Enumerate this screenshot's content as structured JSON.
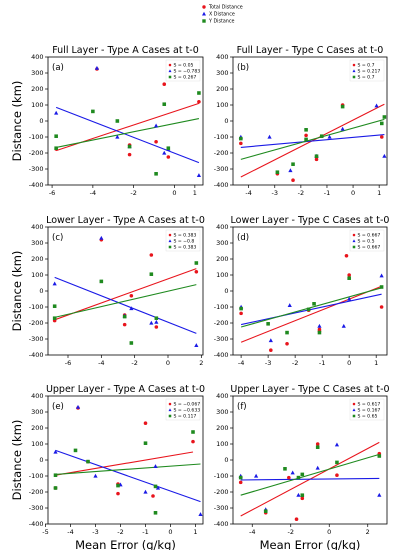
{
  "figure_legend": {
    "entries": [
      {
        "label": "Total Distance",
        "color": "#e8141c",
        "marker": "circle"
      },
      {
        "label": "X Distance",
        "color": "#1a1ae6",
        "marker": "triangle"
      },
      {
        "label": "Y Distance",
        "color": "#1f8a1f",
        "marker": "square"
      }
    ]
  },
  "colors": {
    "total": "#e8141c",
    "x": "#1a1ae6",
    "y": "#1f8a1f"
  },
  "chart_data": [
    {
      "type": "scatter",
      "panel_label": "(a)",
      "title": "Full Layer - Type A Cases at t-0",
      "ylabel": "Distance (km)",
      "xlabel": "",
      "xlim": [
        -6.2,
        1.4
      ],
      "ylim": [
        -400,
        400
      ],
      "xticks": [
        -6,
        -4,
        -2,
        0,
        1
      ],
      "yticks": [
        -400,
        -300,
        -200,
        -100,
        0,
        100,
        200,
        300,
        400
      ],
      "legend": [
        "S = 0.05",
        "S = −0.783",
        "S = 0.267"
      ],
      "series": [
        {
          "key": "total",
          "marker": "circle",
          "points": [
            [
              -5.8,
              -175
            ],
            [
              -3.8,
              325
            ],
            [
              -2.2,
              -210
            ],
            [
              -2.2,
              -150
            ],
            [
              -0.9,
              -130
            ],
            [
              -0.5,
              230
            ],
            [
              -0.3,
              -225
            ],
            [
              1.2,
              120
            ]
          ],
          "fit": [
            [
              -5.8,
              -185
            ],
            [
              1.2,
              110
            ]
          ]
        },
        {
          "key": "x",
          "marker": "triangle",
          "points": [
            [
              -5.8,
              50
            ],
            [
              -3.8,
              330
            ],
            [
              -2.8,
              -100
            ],
            [
              -2.2,
              -160
            ],
            [
              -0.9,
              -30
            ],
            [
              -0.5,
              -200
            ],
            [
              -0.3,
              -175
            ],
            [
              1.2,
              -340
            ]
          ],
          "fit": [
            [
              -5.8,
              85
            ],
            [
              1.2,
              -260
            ]
          ]
        },
        {
          "key": "y",
          "marker": "square",
          "points": [
            [
              -5.8,
              -95
            ],
            [
              -5.8,
              -170
            ],
            [
              -4.0,
              60
            ],
            [
              -2.8,
              0
            ],
            [
              -2.2,
              -160
            ],
            [
              -0.9,
              -330
            ],
            [
              -0.5,
              105
            ],
            [
              -0.3,
              -170
            ],
            [
              1.2,
              175
            ]
          ],
          "fit": [
            [
              -5.8,
              -165
            ],
            [
              1.2,
              15
            ]
          ]
        }
      ]
    },
    {
      "type": "scatter",
      "panel_label": "(b)",
      "title": "Full Layer - Type C Cases at t-0",
      "ylabel": "",
      "xlabel": "",
      "xlim": [
        -4.6,
        1.3
      ],
      "ylim": [
        -400,
        400
      ],
      "xticks": [
        -4,
        -3,
        -2,
        -1,
        0,
        1
      ],
      "yticks": [
        -400,
        -300,
        -200,
        -100,
        0,
        100,
        200,
        300,
        400
      ],
      "legend": [
        "S = 0.7",
        "S = 0.217",
        "S = 0.7"
      ],
      "series": [
        {
          "key": "total",
          "marker": "circle",
          "points": [
            [
              -4.3,
              -140
            ],
            [
              -2.9,
              -330
            ],
            [
              -2.3,
              -370
            ],
            [
              -1.8,
              -90
            ],
            [
              -1.4,
              -240
            ],
            [
              -1.4,
              -225
            ],
            [
              -0.4,
              100
            ],
            [
              1.1,
              -100
            ]
          ],
          "fit": [
            [
              -4.3,
              -350
            ],
            [
              1.2,
              105
            ]
          ]
        },
        {
          "key": "x",
          "marker": "triangle",
          "points": [
            [
              -4.3,
              -100
            ],
            [
              -3.2,
              -100
            ],
            [
              -2.4,
              -310
            ],
            [
              -1.4,
              -220
            ],
            [
              -0.9,
              -100
            ],
            [
              -0.4,
              -50
            ],
            [
              0.9,
              95
            ],
            [
              1.2,
              -220
            ]
          ],
          "fit": [
            [
              -4.3,
              -165
            ],
            [
              1.2,
              -85
            ]
          ]
        },
        {
          "key": "y",
          "marker": "square",
          "points": [
            [
              -4.3,
              -110
            ],
            [
              -2.9,
              -320
            ],
            [
              -2.3,
              -270
            ],
            [
              -1.8,
              -55
            ],
            [
              -1.8,
              -115
            ],
            [
              -1.4,
              -220
            ],
            [
              -1.2,
              -95
            ],
            [
              -0.4,
              90
            ],
            [
              1.1,
              -15
            ],
            [
              1.2,
              25
            ]
          ],
          "fit": [
            [
              -4.3,
              -240
            ],
            [
              1.2,
              10
            ]
          ]
        }
      ]
    },
    {
      "type": "scatter",
      "panel_label": "(c)",
      "title": "Lower Layer - Type A Cases at t-0",
      "ylabel": "Distance (km)",
      "xlabel": "",
      "xlim": [
        -7.2,
        2.1
      ],
      "ylim": [
        -400,
        400
      ],
      "xticks": [
        -6,
        -4,
        -2,
        0,
        2
      ],
      "yticks": [
        -400,
        -300,
        -200,
        -100,
        0,
        100,
        200,
        300,
        400
      ],
      "legend": [
        "S = 0.383",
        "S = −0.8",
        "S = 0.383"
      ],
      "series": [
        {
          "key": "total",
          "marker": "circle",
          "points": [
            [
              -6.8,
              -185
            ],
            [
              -4.0,
              320
            ],
            [
              -2.6,
              -210
            ],
            [
              -2.6,
              -150
            ],
            [
              -2.2,
              -30
            ],
            [
              -1.0,
              225
            ],
            [
              -0.7,
              -225
            ],
            [
              1.7,
              120
            ]
          ],
          "fit": [
            [
              -6.8,
              -180
            ],
            [
              1.7,
              140
            ]
          ]
        },
        {
          "key": "x",
          "marker": "triangle",
          "points": [
            [
              -6.8,
              45
            ],
            [
              -4.0,
              330
            ],
            [
              -2.6,
              -155
            ],
            [
              -2.2,
              -110
            ],
            [
              -1.0,
              -200
            ],
            [
              -0.7,
              -195
            ],
            [
              1.7,
              -340
            ]
          ],
          "fit": [
            [
              -6.8,
              85
            ],
            [
              1.7,
              -265
            ]
          ]
        },
        {
          "key": "y",
          "marker": "square",
          "points": [
            [
              -6.8,
              -95
            ],
            [
              -6.8,
              -170
            ],
            [
              -4.0,
              60
            ],
            [
              -2.6,
              -160
            ],
            [
              -2.2,
              -325
            ],
            [
              -1.0,
              105
            ],
            [
              -0.7,
              -170
            ],
            [
              1.7,
              175
            ]
          ],
          "fit": [
            [
              -6.8,
              -165
            ],
            [
              1.7,
              40
            ]
          ]
        }
      ]
    },
    {
      "type": "scatter",
      "panel_label": "(d)",
      "title": "Lower Layer - Type C Cases at t-0",
      "ylabel": "",
      "xlabel": "",
      "xlim": [
        -4.3,
        1.4
      ],
      "ylim": [
        -400,
        400
      ],
      "xticks": [
        -4,
        -3,
        -2,
        -1,
        0,
        1
      ],
      "yticks": [
        -400,
        -300,
        -200,
        -100,
        0,
        100,
        200,
        300,
        400
      ],
      "legend": [
        "S = 0.667",
        "S = 0.5",
        "S = 0.667"
      ],
      "series": [
        {
          "key": "total",
          "marker": "circle",
          "points": [
            [
              -4.0,
              -140
            ],
            [
              -2.9,
              -370
            ],
            [
              -2.3,
              -330
            ],
            [
              -1.5,
              -120
            ],
            [
              -1.1,
              -240
            ],
            [
              -1.1,
              -250
            ],
            [
              -0.1,
              220
            ],
            [
              0.0,
              100
            ],
            [
              1.2,
              -100
            ]
          ],
          "fit": [
            [
              -4.0,
              -320
            ],
            [
              1.2,
              30
            ]
          ]
        },
        {
          "key": "x",
          "marker": "triangle",
          "points": [
            [
              -4.0,
              -100
            ],
            [
              -2.9,
              -310
            ],
            [
              -2.2,
              -90
            ],
            [
              -1.1,
              -220
            ],
            [
              -0.2,
              -220
            ],
            [
              0.0,
              -50
            ],
            [
              1.2,
              95
            ]
          ],
          "fit": [
            [
              -4.0,
              -210
            ],
            [
              1.2,
              -20
            ]
          ]
        },
        {
          "key": "y",
          "marker": "square",
          "points": [
            [
              -4.0,
              -110
            ],
            [
              -3.0,
              -205
            ],
            [
              -2.3,
              -260
            ],
            [
              -1.5,
              -115
            ],
            [
              -1.3,
              -80
            ],
            [
              -1.1,
              -260
            ],
            [
              0.0,
              80
            ],
            [
              1.2,
              25
            ]
          ],
          "fit": [
            [
              -4.0,
              -225
            ],
            [
              1.2,
              20
            ]
          ]
        }
      ]
    },
    {
      "type": "scatter",
      "panel_label": "(e)",
      "title": "Upper Layer - Type A Cases at t-0",
      "ylabel": "Distance (km)",
      "xlabel": "Mean Error (g/kg)",
      "xlim": [
        -4.9,
        1.3
      ],
      "ylim": [
        -400,
        400
      ],
      "xticks": [
        -5,
        -4,
        -3,
        -2,
        -1,
        0,
        1
      ],
      "yticks": [
        -400,
        -300,
        -200,
        -100,
        0,
        100,
        200,
        300,
        400
      ],
      "legend": [
        "S = −0.067",
        "S = −0.633",
        "S = 0.117"
      ],
      "series": [
        {
          "key": "total",
          "marker": "circle",
          "points": [
            [
              -4.6,
              -175
            ],
            [
              -3.7,
              325
            ],
            [
              -3.3,
              -10
            ],
            [
              -2.1,
              -210
            ],
            [
              -2.1,
              -150
            ],
            [
              -1.0,
              230
            ],
            [
              -0.7,
              -225
            ],
            [
              0.9,
              115
            ]
          ],
          "fit": [
            [
              -4.6,
              -95
            ],
            [
              0.9,
              50
            ]
          ]
        },
        {
          "key": "x",
          "marker": "triangle",
          "points": [
            [
              -4.6,
              50
            ],
            [
              -3.7,
              330
            ],
            [
              -3.0,
              -100
            ],
            [
              -2.0,
              -155
            ],
            [
              -1.0,
              -200
            ],
            [
              -0.6,
              -40
            ],
            [
              -0.5,
              -175
            ],
            [
              1.2,
              -340
            ]
          ],
          "fit": [
            [
              -4.6,
              60
            ],
            [
              1.2,
              -260
            ]
          ]
        },
        {
          "key": "y",
          "marker": "square",
          "points": [
            [
              -4.6,
              -95
            ],
            [
              -4.6,
              -175
            ],
            [
              -3.8,
              60
            ],
            [
              -3.3,
              -10
            ],
            [
              -2.1,
              -160
            ],
            [
              -1.0,
              105
            ],
            [
              -0.6,
              -330
            ],
            [
              -0.6,
              -165
            ],
            [
              0.9,
              175
            ]
          ],
          "fit": [
            [
              -4.6,
              -90
            ],
            [
              1.2,
              -25
            ]
          ]
        }
      ]
    },
    {
      "type": "scatter",
      "panel_label": "(f)",
      "title": "Upper Layer - Type C Cases at t-0",
      "ylabel": "",
      "xlabel": "Mean Error (g/kg)",
      "xlim": [
        -5.0,
        3.0
      ],
      "ylim": [
        -400,
        400
      ],
      "xticks": [
        -4,
        -2,
        0,
        2
      ],
      "yticks": [
        -400,
        -300,
        -200,
        -100,
        0,
        100,
        200,
        300,
        400
      ],
      "legend": [
        "S = 0.617",
        "S = 0.167",
        "S = 0.65"
      ],
      "series": [
        {
          "key": "total",
          "marker": "circle",
          "points": [
            [
              -4.6,
              -140
            ],
            [
              -3.3,
              -330
            ],
            [
              -2.1,
              -110
            ],
            [
              -1.7,
              -370
            ],
            [
              -1.4,
              -240
            ],
            [
              -1.4,
              -225
            ],
            [
              -0.6,
              100
            ],
            [
              0.4,
              -95
            ],
            [
              2.6,
              40
            ]
          ],
          "fit": [
            [
              -4.6,
              -350
            ],
            [
              2.6,
              110
            ]
          ]
        },
        {
          "key": "x",
          "marker": "triangle",
          "points": [
            [
              -4.6,
              -100
            ],
            [
              -3.8,
              -100
            ],
            [
              -3.3,
              -310
            ],
            [
              -1.9,
              -80
            ],
            [
              -1.6,
              -220
            ],
            [
              -0.6,
              -50
            ],
            [
              0.4,
              95
            ],
            [
              2.6,
              -220
            ]
          ],
          "fit": [
            [
              -4.6,
              -125
            ],
            [
              2.6,
              -115
            ]
          ]
        },
        {
          "key": "y",
          "marker": "square",
          "points": [
            [
              -4.6,
              -110
            ],
            [
              -3.3,
              -320
            ],
            [
              -2.3,
              -55
            ],
            [
              -1.6,
              -110
            ],
            [
              -1.4,
              -90
            ],
            [
              -1.4,
              -220
            ],
            [
              -0.6,
              80
            ],
            [
              0.4,
              -15
            ],
            [
              2.6,
              25
            ]
          ],
          "fit": [
            [
              -4.6,
              -220
            ],
            [
              2.6,
              35
            ]
          ]
        }
      ]
    }
  ]
}
